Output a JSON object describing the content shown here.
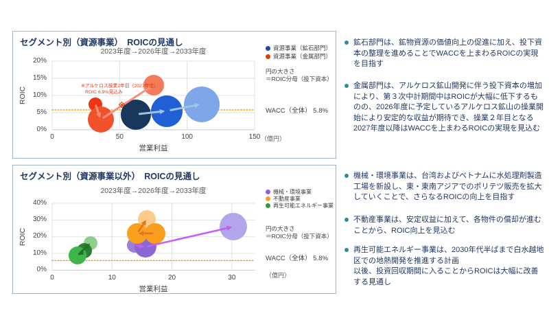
{
  "panels": [
    {
      "title": "セグメント別（資源事業）　ROICの見通し",
      "subtitle": "2023年度→2026年度→2033年度",
      "legend": [
        {
          "label": "資源事業（鉱石部門）",
          "color": "#2547a8"
        },
        {
          "label": "資源事業（金属部門）",
          "color": "#e8380d"
        }
      ],
      "size_note_line1": "円の大きさ",
      "size_note_line2": "＝ROIC分母（投下資本）",
      "ylabel": "ROIC",
      "xlabel": "営業利益",
      "unit_label": "（億円）",
      "wacc_label": "WACC（全体） 5.8%",
      "chart_data": {
        "type": "scatter",
        "xlim": [
          0,
          150
        ],
        "xticks": [
          0,
          50,
          100,
          150
        ],
        "ylim": [
          0,
          20
        ],
        "yticks": [
          0,
          5,
          10,
          15,
          20
        ],
        "y_tick_suffix": "%",
        "wacc": 5.8,
        "wacc_color": "#f2a116",
        "series": [
          {
            "name": "資源事業（鉱石部門）",
            "arrow_color": "#9dc3e6",
            "points": [
              {
                "label": "2023年度",
                "x": 62,
                "y": 4.5,
                "r": 22,
                "color": "#17375d",
                "z": 1
              },
              {
                "label": "2026年度",
                "x": 85,
                "y": 5.5,
                "r": 23,
                "color": "#2160d4",
                "z": 1
              },
              {
                "label": "2033年度",
                "x": 111,
                "y": 7.5,
                "r": 26,
                "color": "#7da7e8",
                "z": 1
              }
            ]
          },
          {
            "name": "資源事業（金属部門）",
            "arrow_color": "#f5907a",
            "points": [
              {
                "label": "2023年度",
                "x": 32,
                "y": 7.5,
                "r": 10,
                "color": "#ee3412",
                "z": 1
              },
              {
                "label": "2026年度",
                "x": 36,
                "y": 3,
                "r": 19,
                "color": "#f2512b",
                "z": 1
              },
              {
                "label": "2033年度",
                "x": 75,
                "y": 13,
                "r": 15,
                "color": "#f37b59",
                "z": 1
              }
            ]
          }
        ],
        "annotations": [
          {
            "marker": true,
            "text": "※",
            "x": 52,
            "y": 7,
            "color": "#e8380d"
          },
          {
            "lines": [
              "※アルケロス操業2年目（2027年度）",
              "ROIC 6.9%見込み"
            ],
            "x": 21.4,
            "y": 13.4,
            "size": 6.8,
            "color": "#e8380d"
          }
        ]
      }
    },
    {
      "title": "セグメント別（資源事業以外）　ROICの見通し",
      "subtitle": "2023年度→2026年度→2033年度",
      "legend": [
        {
          "label": "機械・環境事業",
          "color": "#8f5fd6"
        },
        {
          "label": "不動産事業",
          "color": "#f9a01f"
        },
        {
          "label": "再生可能エネルギー事業",
          "color": "#2e9b3b"
        }
      ],
      "size_note_line1": "円の大きさ",
      "size_note_line2": "＝ROIC分母（投下資本）",
      "ylabel": "ROIC",
      "xlabel": "営業利益",
      "unit_label": "（億円）",
      "wacc_label": "WACC（全体） 5.8%",
      "chart_data": {
        "type": "scatter",
        "xlim": [
          0,
          33.8
        ],
        "xticks": [
          0,
          10,
          20,
          30
        ],
        "ylim": [
          0,
          40
        ],
        "yticks": [
          0,
          10,
          20,
          30,
          40
        ],
        "y_tick_suffix": "%",
        "wacc": 5.8,
        "wacc_color": "#f2a116",
        "series": [
          {
            "name": "機械・環境事業",
            "arrow_color": "#c45ef2",
            "points": [
              {
                "label": "2023年度",
                "x": 13.8,
                "y": 15,
                "r": 11,
                "color": "#9a7fd9",
                "z": 1
              },
              {
                "label": "2026年度",
                "x": 15.6,
                "y": 14,
                "r": 16,
                "color": "#8d66d6",
                "z": 2
              },
              {
                "label": "2033年度",
                "x": 30.3,
                "y": 26,
                "r": 20,
                "color": "#b3a5ec",
                "z": 6
              }
            ]
          },
          {
            "name": "不動産事業",
            "arrow_color": "#e8731c",
            "points": [
              {
                "label": "2023年度",
                "x": 17.2,
                "y": 22,
                "r": 15,
                "color": "#f99d1c",
                "z": 5
              },
              {
                "label": "2026年度",
                "x": 14.2,
                "y": 22,
                "r": 15,
                "color": "#f9a01f",
                "z": 4
              },
              {
                "label": "2033年度",
                "x": 15.8,
                "y": 30.5,
                "r": 13,
                "color": "#fbcb8b",
                "z": 3
              }
            ]
          },
          {
            "name": "再生可能エネルギー事業",
            "arrow_color": "#256e2d",
            "points": [
              {
                "label": "2023年度",
                "x": 5.4,
                "y": 11.5,
                "r": 11,
                "color": "#2c7d35",
                "z": 4
              },
              {
                "label": "2026年度",
                "x": 4.2,
                "y": 8.7,
                "r": 13,
                "color": "#3cb549",
                "z": 5
              },
              {
                "label": "2033年度",
                "x": 6.4,
                "y": 16.3,
                "r": 10,
                "color": "#8fce90",
                "z": 3
              }
            ]
          }
        ],
        "annotations": []
      }
    }
  ],
  "bullets": [
    {
      "text": "鉱石部門は、鉱物資源の価値向上の促進に加え、投下資本の整理を進めることでWACCを上まわるROICの実現を目指す"
    },
    {
      "text": "金属部門は、アルケロス鉱山開発に伴う投下資本の増加により、第３次中計期間中はROICが大幅に低下するものの、2026年度に予定しているアルケロス鉱山の操業開始により安定的な収益が期待でき、操業２年目となる2027年度以降はWACCを上まわるROICの実現を見込む"
    },
    {
      "text": "機械・環境事業は、台湾およびベトナムに水処理剤製造工場を新設し、東・東南アジアでのポリテツ販売を拡大していくことで、さらなるROICの向上を目指す"
    },
    {
      "text": "不動産事業は、安定収益に加えて、各物件の償却が進むことから、ROIC向上を見込む"
    },
    {
      "text": "再生可能エネルギー事業は、2030年代半ばまで白水越地区での地熱開発を推進する計画\n以後、投資回収期間に入ることからROICは大幅に改善する見通し"
    }
  ],
  "bullet_marker_color": "#2e8b96"
}
